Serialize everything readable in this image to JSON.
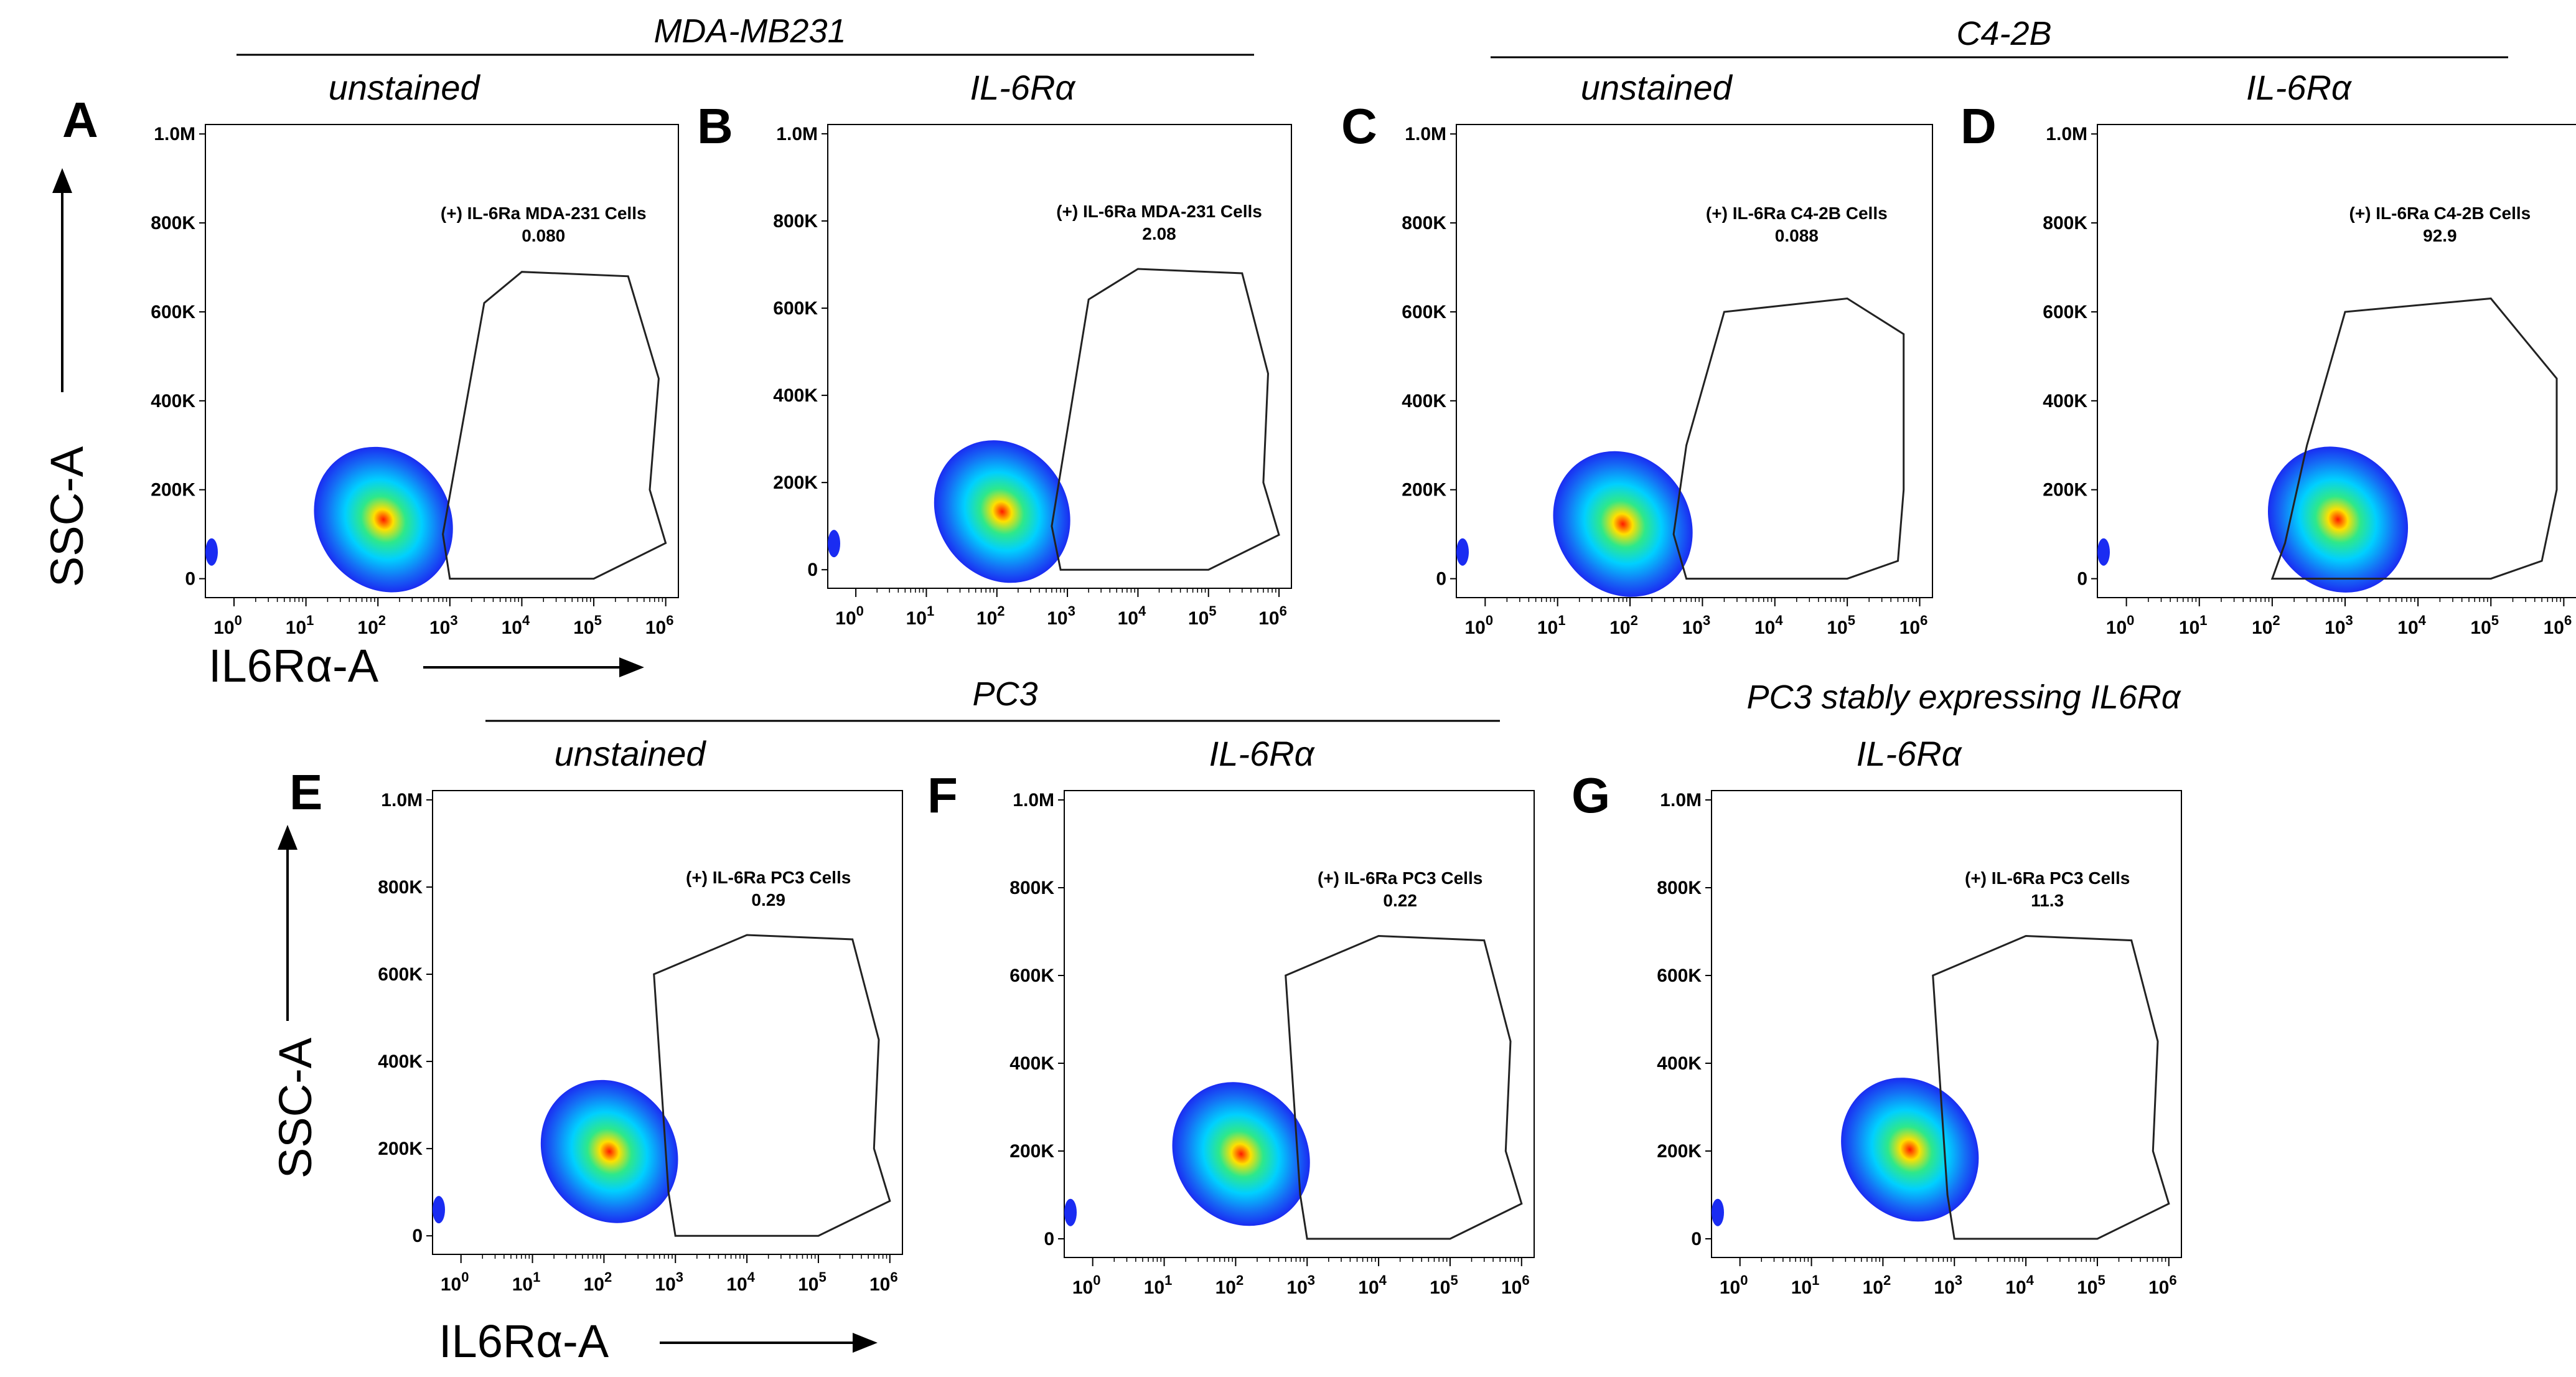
{
  "groups": {
    "mda": "MDA-MB231",
    "c42b": "C4-2B",
    "pc3": "PC3",
    "pc3_stable": "PC3 stably expressing IL6Rα"
  },
  "axis_titles": {
    "y": "SSC-A",
    "x": "IL6Rα-A"
  },
  "colors": {
    "density_low": "#1a2cf2",
    "density_mid": "#00d0ff",
    "density_midhigh": "#2ee88a",
    "density_high": "#ffe000",
    "density_peak": "#ff1a00",
    "gate": "#222222"
  },
  "chart_data": [
    {
      "type": "scatter",
      "panel": "A",
      "group": "MDA-MB231",
      "title": "unstained",
      "gate_label": "(+) IL-6Ra MDA-231 Cells",
      "gate_value": "0.080",
      "xlabel": "IL6Rα-A",
      "ylabel": "SSC-A",
      "x_scale": "log",
      "xlim": [
        0.4,
        1500000
      ],
      "ylim": [
        0,
        1000000
      ],
      "y_ticks": [
        "0",
        "200K",
        "400K",
        "600K",
        "800K",
        "1.0M"
      ],
      "x_ticks": [
        "0",
        "1",
        "2",
        "3",
        "4",
        "5",
        "6"
      ],
      "density_peak": {
        "x": 150,
        "y": 110000
      },
      "gate_polygon": [
        [
          1000,
          0
        ],
        [
          100000,
          0
        ],
        [
          1000000,
          80000
        ],
        [
          600000,
          200000
        ],
        [
          800000,
          450000
        ],
        [
          300000,
          680000
        ],
        [
          10000,
          690000
        ],
        [
          3000,
          620000
        ],
        [
          800,
          100000
        ]
      ]
    },
    {
      "type": "scatter",
      "panel": "B",
      "group": "MDA-MB231",
      "title": "IL-6Rα",
      "gate_label": "(+) IL-6Ra MDA-231 Cells",
      "gate_value": "2.08",
      "xlabel": "IL6Rα-A",
      "ylabel": "SSC-A",
      "x_scale": "log",
      "xlim": [
        0.4,
        1500000
      ],
      "ylim": [
        0,
        1000000
      ],
      "y_ticks": [
        "0",
        "200K",
        "400K",
        "600K",
        "800K",
        "1.0M"
      ],
      "x_ticks": [
        "0",
        "1",
        "2",
        "3",
        "4",
        "5",
        "6"
      ],
      "density_peak": {
        "x": 150,
        "y": 110000
      },
      "gate_polygon": [
        [
          800,
          0
        ],
        [
          100000,
          0
        ],
        [
          1000000,
          80000
        ],
        [
          600000,
          200000
        ],
        [
          700000,
          450000
        ],
        [
          300000,
          680000
        ],
        [
          10000,
          690000
        ],
        [
          2000,
          620000
        ],
        [
          600,
          100000
        ]
      ]
    },
    {
      "type": "scatter",
      "panel": "C",
      "group": "C4-2B",
      "title": "unstained",
      "gate_label": "(+) IL-6Ra C4-2B Cells",
      "gate_value": "0.088",
      "xlabel": "IL6Rα-A",
      "ylabel": "SSC-A",
      "x_scale": "log",
      "xlim": [
        0.4,
        1500000
      ],
      "ylim": [
        0,
        1000000
      ],
      "y_ticks": [
        "0",
        "200K",
        "400K",
        "600K",
        "800K",
        "1.0M"
      ],
      "x_ticks": [
        "0",
        "1",
        "2",
        "3",
        "4",
        "5",
        "6"
      ],
      "density_peak": {
        "x": 100,
        "y": 100000
      },
      "gate_polygon": [
        [
          600,
          0
        ],
        [
          100000,
          0
        ],
        [
          500000,
          40000
        ],
        [
          600000,
          200000
        ],
        [
          600000,
          550000
        ],
        [
          100000,
          630000
        ],
        [
          2000,
          600000
        ],
        [
          600,
          300000
        ],
        [
          400,
          100000
        ]
      ]
    },
    {
      "type": "scatter",
      "panel": "D",
      "group": "C4-2B",
      "title": "IL-6Rα",
      "gate_label": "(+) IL-6Ra C4-2B Cells",
      "gate_value": "92.9",
      "xlabel": "IL6Rα-A",
      "ylabel": "SSC-A",
      "x_scale": "log",
      "xlim": [
        0.4,
        1500000
      ],
      "ylim": [
        0,
        1000000
      ],
      "y_ticks": [
        "0",
        "200K",
        "400K",
        "600K",
        "800K",
        "1.0M"
      ],
      "x_ticks": [
        "0",
        "1",
        "2",
        "3",
        "4",
        "5",
        "6"
      ],
      "density_peak": {
        "x": 1000,
        "y": 110000
      },
      "gate_polygon": [
        [
          100,
          0
        ],
        [
          100000,
          0
        ],
        [
          500000,
          40000
        ],
        [
          800000,
          200000
        ],
        [
          800000,
          450000
        ],
        [
          100000,
          630000
        ],
        [
          1000,
          600000
        ],
        [
          300,
          300000
        ],
        [
          150,
          80000
        ]
      ]
    },
    {
      "type": "scatter",
      "panel": "E",
      "group": "PC3",
      "title": "unstained",
      "gate_label": "(+) IL-6Ra PC3 Cells",
      "gate_value": "0.29",
      "xlabel": "IL6Rα-A",
      "ylabel": "SSC-A",
      "x_scale": "log",
      "xlim": [
        0.4,
        1500000
      ],
      "ylim": [
        0,
        1000000
      ],
      "y_ticks": [
        "0",
        "200K",
        "400K",
        "600K",
        "800K",
        "1.0M"
      ],
      "x_ticks": [
        "0",
        "1",
        "2",
        "3",
        "4",
        "5",
        "6"
      ],
      "density_peak": {
        "x": 150,
        "y": 170000
      },
      "gate_polygon": [
        [
          1000,
          0
        ],
        [
          100000,
          0
        ],
        [
          1000000,
          80000
        ],
        [
          600000,
          200000
        ],
        [
          700000,
          450000
        ],
        [
          300000,
          680000
        ],
        [
          10000,
          690000
        ],
        [
          500,
          600000
        ],
        [
          800,
          100000
        ]
      ]
    },
    {
      "type": "scatter",
      "panel": "F",
      "group": "PC3",
      "title": "IL-6Rα",
      "gate_label": "(+) IL-6Ra PC3 Cells",
      "gate_value": "0.22",
      "xlabel": "IL6Rα-A",
      "ylabel": "SSC-A",
      "x_scale": "log",
      "xlim": [
        0.4,
        1500000
      ],
      "ylim": [
        0,
        1000000
      ],
      "y_ticks": [
        "0",
        "200K",
        "400K",
        "600K",
        "800K",
        "1.0M"
      ],
      "x_ticks": [
        "0",
        "1",
        "2",
        "3",
        "4",
        "5",
        "6"
      ],
      "density_peak": {
        "x": 150,
        "y": 170000
      },
      "gate_polygon": [
        [
          1000,
          0
        ],
        [
          100000,
          0
        ],
        [
          1000000,
          80000
        ],
        [
          600000,
          200000
        ],
        [
          700000,
          450000
        ],
        [
          300000,
          680000
        ],
        [
          10000,
          690000
        ],
        [
          500,
          600000
        ],
        [
          800,
          100000
        ]
      ]
    },
    {
      "type": "scatter",
      "panel": "G",
      "group": "PC3 stably expressing IL6Rα",
      "title": "IL-6Rα",
      "gate_label": "(+) IL-6Ra PC3 Cells",
      "gate_value": "11.3",
      "xlabel": "IL6Rα-A",
      "ylabel": "SSC-A",
      "x_scale": "log",
      "xlim": [
        0.4,
        1500000
      ],
      "ylim": [
        0,
        1000000
      ],
      "y_ticks": [
        "0",
        "200K",
        "400K",
        "600K",
        "800K",
        "1.0M"
      ],
      "x_ticks": [
        "0",
        "1",
        "2",
        "3",
        "4",
        "5",
        "6"
      ],
      "density_peak": {
        "x": 300,
        "y": 180000
      },
      "gate_polygon": [
        [
          1000,
          0
        ],
        [
          100000,
          0
        ],
        [
          1000000,
          80000
        ],
        [
          600000,
          200000
        ],
        [
          700000,
          450000
        ],
        [
          300000,
          680000
        ],
        [
          10000,
          690000
        ],
        [
          500,
          600000
        ],
        [
          800,
          100000
        ]
      ]
    }
  ]
}
